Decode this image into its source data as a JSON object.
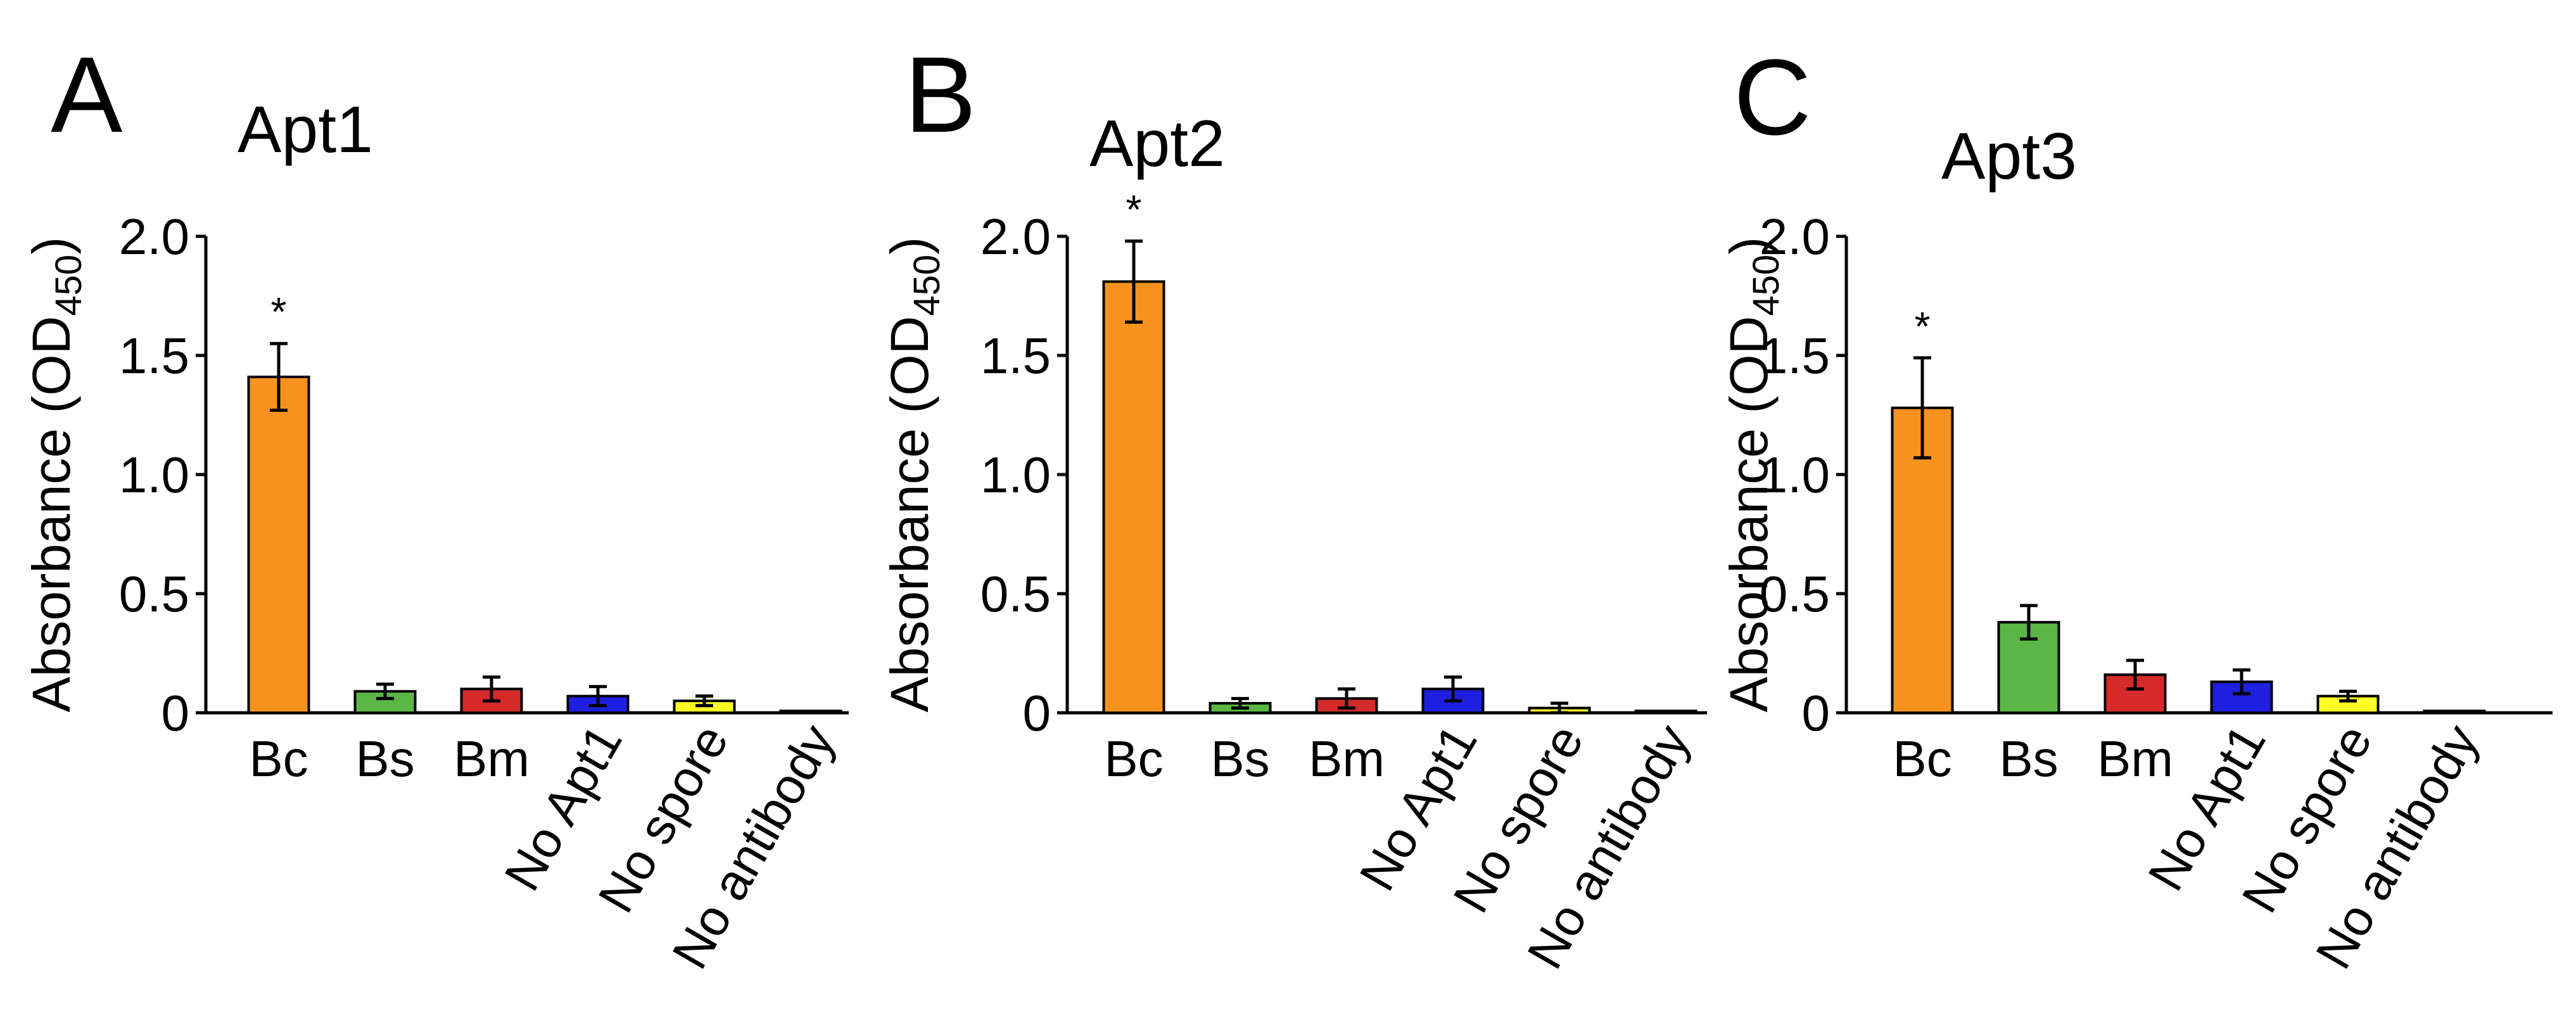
{
  "chart_data": [
    {
      "panel": "A",
      "type": "bar",
      "title": "Apt1",
      "ylabel": {
        "main": "Absorbance (OD",
        "sub": "450",
        "close": ")"
      },
      "ylim": [
        0,
        2.0
      ],
      "yticks": [
        0,
        0.5,
        1.0,
        1.5,
        2.0
      ],
      "ytick_labels": [
        "0",
        "0.5",
        "1.0",
        "1.5",
        "2.0"
      ],
      "categories": [
        "Bc",
        "Bs",
        "Bm",
        "No Apt1",
        "No spore",
        "No antibody"
      ],
      "values": [
        1.41,
        0.09,
        0.1,
        0.07,
        0.05,
        0.005
      ],
      "errors": [
        0.14,
        0.03,
        0.05,
        0.04,
        0.02,
        0.003
      ],
      "colors": [
        "#F7931E",
        "#5BB646",
        "#D42A2A",
        "#1F1FE0",
        "#FFFF26",
        "#FFFFFF"
      ],
      "significance": [
        "*",
        "",
        "",
        "",
        "",
        ""
      ]
    },
    {
      "panel": "B",
      "type": "bar",
      "title": "Apt2",
      "ylabel": {
        "main": "Absorbance (OD",
        "sub": "450",
        "close": ")"
      },
      "ylim": [
        0,
        2.0
      ],
      "yticks": [
        0,
        0.5,
        1.0,
        1.5,
        2.0
      ],
      "ytick_labels": [
        "0",
        "0.5",
        "1.0",
        "1.5",
        "2.0"
      ],
      "categories": [
        "Bc",
        "Bs",
        "Bm",
        "No Apt1",
        "No spore",
        "No antibody"
      ],
      "values": [
        1.81,
        0.04,
        0.06,
        0.1,
        0.02,
        0.005
      ],
      "errors": [
        0.17,
        0.02,
        0.04,
        0.05,
        0.02,
        0.003
      ],
      "colors": [
        "#F7931E",
        "#5BB646",
        "#D42A2A",
        "#1F1FE0",
        "#FFFF26",
        "#FFFFFF"
      ],
      "significance": [
        "*",
        "",
        "",
        "",
        "",
        ""
      ]
    },
    {
      "panel": "C",
      "type": "bar",
      "title": "Apt3",
      "ylabel": {
        "main": "Absorbance (OD",
        "sub": "450",
        "close": ")"
      },
      "ylim": [
        0,
        2.0
      ],
      "yticks": [
        0,
        0.5,
        1.0,
        1.5,
        2.0
      ],
      "ytick_labels": [
        "0",
        "0.5",
        "1.0",
        "1.5",
        "2.0"
      ],
      "categories": [
        "Bc",
        "Bs",
        "Bm",
        "No Apt1",
        "No spore",
        "No antibody"
      ],
      "values": [
        1.28,
        0.38,
        0.16,
        0.13,
        0.07,
        0.005
      ],
      "errors": [
        0.21,
        0.07,
        0.06,
        0.05,
        0.02,
        0.003
      ],
      "colors": [
        "#F7931E",
        "#5BB646",
        "#D42A2A",
        "#1F1FE0",
        "#FFFF26",
        "#FFFFFF"
      ],
      "significance": [
        "*",
        "",
        "",
        "",
        "",
        ""
      ]
    }
  ]
}
